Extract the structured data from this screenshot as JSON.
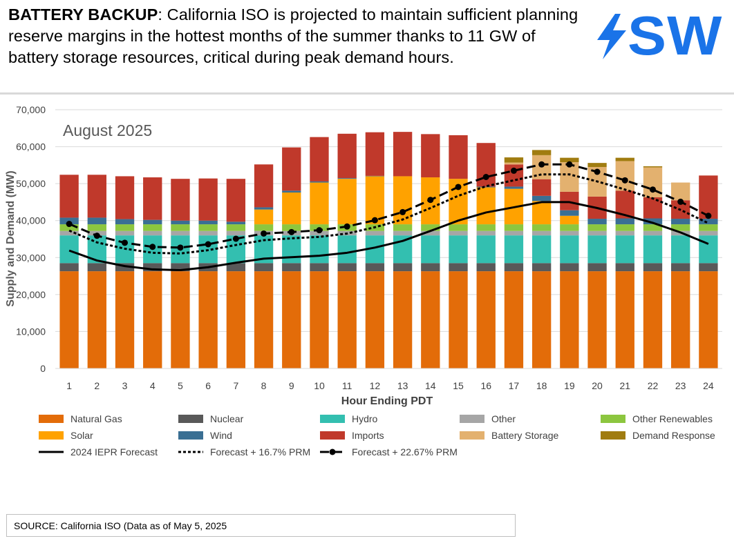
{
  "headline": {
    "bold": "BATTERY BACKUP",
    "text": ": California ISO is projected to maintain sufficient planning reserve margins in the hottest months of the summer thanks to 11 GW of battery storage resources, critical during peak demand hours."
  },
  "logo": {
    "text": "SW",
    "color": "#1a73e8",
    "icon": "lightning-bolt-icon"
  },
  "source": "SOURCE: California ISO (Data as of May 5, 2025",
  "chart_data": {
    "type": "bar",
    "stacked": true,
    "title": "August 2025",
    "xlabel": "Hour Ending PDT",
    "ylabel": "Supply and Demand (MW)",
    "ylim": [
      0,
      70000
    ],
    "yticks": [
      0,
      10000,
      20000,
      30000,
      40000,
      50000,
      60000,
      70000
    ],
    "ytick_labels": [
      "0",
      "10,000",
      "20,000",
      "30,000",
      "40,000",
      "50,000",
      "60,000",
      "70,000"
    ],
    "categories": [
      "1",
      "2",
      "3",
      "4",
      "5",
      "6",
      "7",
      "8",
      "9",
      "10",
      "11",
      "12",
      "13",
      "14",
      "15",
      "16",
      "17",
      "18",
      "19",
      "20",
      "21",
      "22",
      "23",
      "24"
    ],
    "series": [
      {
        "name": "Natural Gas",
        "color": "#e36c09",
        "values": [
          26300,
          26300,
          26300,
          26300,
          26300,
          26300,
          26300,
          26300,
          26300,
          26300,
          26300,
          26300,
          26300,
          26300,
          26300,
          26300,
          26300,
          26300,
          26300,
          26300,
          26300,
          26300,
          26300,
          26300
        ]
      },
      {
        "name": "Nuclear",
        "color": "#595959",
        "values": [
          2200,
          2200,
          2200,
          2200,
          2200,
          2200,
          2200,
          2200,
          2200,
          2200,
          2200,
          2200,
          2200,
          2200,
          2200,
          2200,
          2200,
          2200,
          2200,
          2200,
          2200,
          2200,
          2200,
          2200
        ]
      },
      {
        "name": "Hydro",
        "color": "#33bfb0",
        "values": [
          7500,
          7500,
          7500,
          7500,
          7500,
          7500,
          7500,
          7500,
          7500,
          7500,
          7500,
          7500,
          7500,
          7500,
          7500,
          7500,
          7500,
          7500,
          7500,
          7500,
          7500,
          7500,
          7500,
          7500
        ]
      },
      {
        "name": "Other",
        "color": "#a6a6a6",
        "values": [
          1200,
          1200,
          1200,
          1200,
          1200,
          1200,
          1200,
          1200,
          1200,
          1200,
          1200,
          1200,
          1200,
          1200,
          1200,
          1200,
          1200,
          1200,
          1200,
          1200,
          1200,
          1200,
          1200,
          1200
        ]
      },
      {
        "name": "Other Renewables",
        "color": "#8cc63f",
        "values": [
          1800,
          1800,
          1800,
          1800,
          1800,
          1800,
          1800,
          1800,
          1800,
          1800,
          1800,
          1800,
          1800,
          1800,
          1800,
          1800,
          1800,
          1800,
          1800,
          1800,
          1800,
          1800,
          1800,
          1800
        ]
      },
      {
        "name": "Solar",
        "color": "#ffa200",
        "values": [
          0,
          0,
          0,
          0,
          0,
          0,
          0,
          4000,
          8600,
          11300,
          12300,
          13000,
          13000,
          12700,
          12300,
          10000,
          9600,
          6300,
          2300,
          0,
          0,
          0,
          0,
          0
        ]
      },
      {
        "name": "Wind",
        "color": "#3a6f93",
        "values": [
          1800,
          1800,
          1400,
          1200,
          1000,
          1000,
          700,
          600,
          500,
          300,
          200,
          100,
          0,
          0,
          0,
          200,
          600,
          1400,
          1500,
          1500,
          1600,
          1600,
          1500,
          1500
        ]
      },
      {
        "name": "Imports",
        "color": "#c0392b",
        "values": [
          11600,
          11600,
          11600,
          11500,
          11300,
          11400,
          11600,
          11600,
          11700,
          12000,
          12000,
          11800,
          12000,
          11700,
          11800,
          11800,
          6000,
          4500,
          5000,
          6000,
          7500,
          5700,
          5000,
          11700
        ]
      },
      {
        "name": "Battery Storage",
        "color": "#e3b16f",
        "values": [
          0,
          0,
          0,
          0,
          0,
          0,
          0,
          0,
          0,
          0,
          0,
          0,
          0,
          0,
          0,
          0,
          500,
          6500,
          8000,
          8000,
          8000,
          8100,
          4800,
          0
        ]
      },
      {
        "name": "Demand Response",
        "color": "#a07c10",
        "values": [
          0,
          0,
          0,
          0,
          0,
          0,
          0,
          0,
          0,
          0,
          0,
          0,
          0,
          0,
          0,
          0,
          1400,
          1400,
          1200,
          1100,
          900,
          300,
          0,
          0
        ]
      }
    ],
    "lines": [
      {
        "name": "2024 IEPR Forecast",
        "style": "solid",
        "values": [
          31900,
          29200,
          27700,
          26800,
          26600,
          27400,
          28600,
          29700,
          30100,
          30500,
          31300,
          32700,
          34500,
          37200,
          40000,
          42200,
          43600,
          45000,
          45000,
          43400,
          41500,
          39400,
          36800,
          33700
        ]
      },
      {
        "name": "Forecast + 16.7% PRM",
        "style": "dotted",
        "values": [
          37300,
          34100,
          32400,
          31300,
          31100,
          32000,
          33400,
          34700,
          35200,
          35600,
          36500,
          38200,
          40300,
          43400,
          46700,
          49300,
          50900,
          52500,
          52500,
          50600,
          48400,
          46000,
          42900,
          39300
        ]
      },
      {
        "name": "Forecast + 22.67% PRM",
        "style": "dash-marker",
        "values": [
          39100,
          35900,
          34000,
          32900,
          32700,
          33600,
          35100,
          36500,
          36900,
          37400,
          38400,
          40100,
          42300,
          45600,
          49100,
          51800,
          53500,
          55200,
          55200,
          53200,
          50900,
          48400,
          45100,
          41300
        ]
      }
    ],
    "legend": [
      "Natural Gas",
      "Nuclear",
      "Hydro",
      "Other",
      "Other Renewables",
      "Solar",
      "Wind",
      "Imports",
      "Battery Storage",
      "Demand Response",
      "2024 IEPR Forecast",
      "Forecast + 16.7% PRM",
      "Forecast + 22.67% PRM"
    ],
    "legend_position": "bottom",
    "grid": true
  }
}
